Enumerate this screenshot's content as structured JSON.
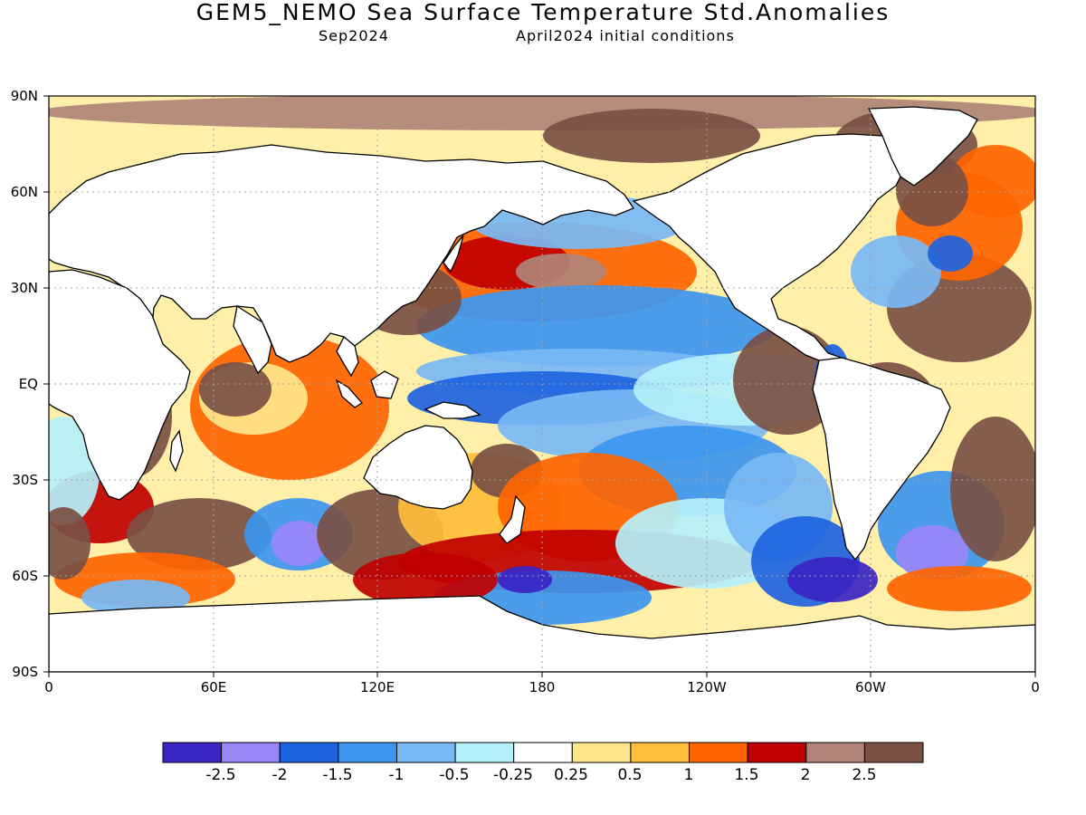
{
  "title": "GEM5_NEMO Sea Surface Temperature Std.Anomalies",
  "subtitle_left": "Sep2024",
  "subtitle_right": "April2024 initial conditions",
  "lat_labels": [
    "90N",
    "60N",
    "30N",
    "EQ",
    "30S",
    "60S",
    "90S"
  ],
  "lon_labels": [
    "0",
    "60E",
    "120E",
    "180",
    "120W",
    "60W",
    "0"
  ],
  "colorbar": {
    "colors": [
      "#3b24c4",
      "#9b86f8",
      "#1e64e0",
      "#3c96f0",
      "#78b8f5",
      "#b4f0fa",
      "#ffffff",
      "#ffe68a",
      "#ffbe3a",
      "#ff6400",
      "#c00000",
      "#b08478",
      "#7a5044"
    ],
    "tick_labels": [
      "-2.5",
      "-2",
      "-1.5",
      "-1",
      "-0.5",
      "-0.25",
      "0.25",
      "0.5",
      "1",
      "1.5",
      "2",
      "2.5"
    ]
  },
  "map_colors": {
    "land": "#ffffff",
    "coast": "#000000",
    "grid": "#a0a0a0"
  }
}
